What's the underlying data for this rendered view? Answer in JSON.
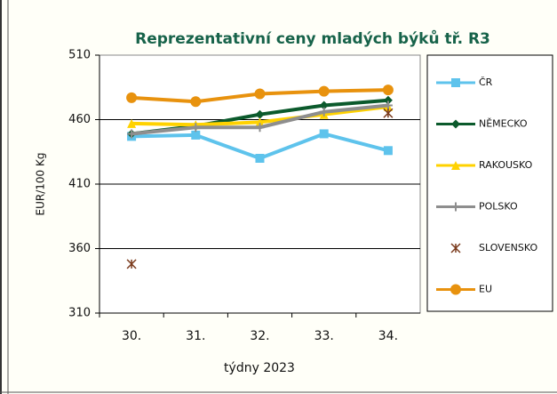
{
  "chart_data": {
    "type": "line",
    "title": "Reprezentativní  ceny mladých býků tř. R3",
    "y_label": "EUR/100 Kg",
    "x_label": "týdny 2023",
    "categories": [
      "30.",
      "31.",
      "32.",
      "33.",
      "34."
    ],
    "ylim": [
      310,
      510
    ],
    "yticks": [
      310,
      360,
      410,
      460,
      510
    ],
    "grid": true,
    "legend": "right",
    "series": [
      {
        "name": "ČR",
        "color": "#5ec3ec",
        "marker": "square",
        "values": [
          447,
          448,
          430,
          449,
          436
        ]
      },
      {
        "name": "NĚMECKO",
        "color": "#0b5a2c",
        "marker": "diamond",
        "values": [
          449,
          455,
          464,
          471,
          475
        ]
      },
      {
        "name": "RAKOUSKO",
        "color": "#ffd200",
        "marker": "triangle",
        "values": [
          457,
          456,
          458,
          464,
          470
        ]
      },
      {
        "name": "POLSKO",
        "color": "#8e8e8e",
        "marker": "plus",
        "values": [
          449,
          454,
          454,
          466,
          471
        ]
      },
      {
        "name": "SLOVENSKO",
        "color": "#7a3a1c",
        "marker": "star",
        "values": [
          348,
          null,
          null,
          null,
          465
        ]
      },
      {
        "name": "EU",
        "color": "#e8920e",
        "marker": "circle",
        "values": [
          477,
          474,
          480,
          482,
          483
        ]
      }
    ]
  }
}
